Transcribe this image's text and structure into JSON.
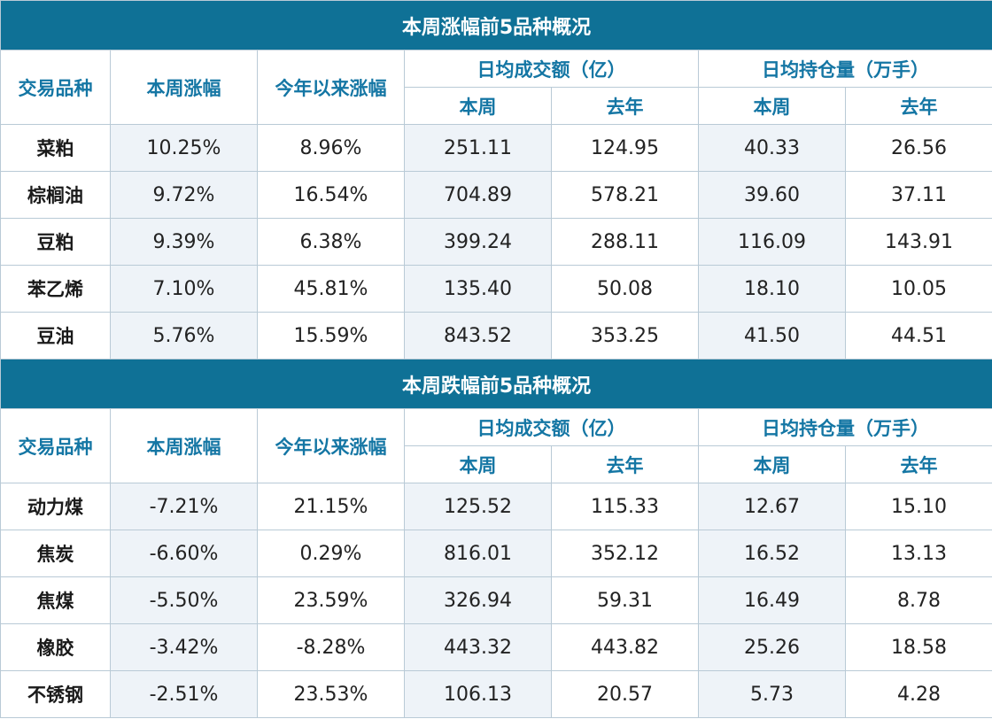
{
  "sections": [
    {
      "title": "本周涨幅前5品种概况",
      "headers": {
        "name": "交易品种",
        "week_change": "本周涨幅",
        "ytd_change": "今年以来涨幅",
        "volume_group": "日均成交额（亿）",
        "oi_group": "日均持仓量（万手）",
        "this_week": "本周",
        "last_year": "去年"
      },
      "rows": [
        {
          "name": "菜粕",
          "week_change": "10.25%",
          "ytd_change": "8.96%",
          "volume_week": "251.11",
          "volume_last_year": "124.95",
          "oi_week": "40.33",
          "oi_last_year": "26.56"
        },
        {
          "name": "棕榈油",
          "week_change": "9.72%",
          "ytd_change": "16.54%",
          "volume_week": "704.89",
          "volume_last_year": "578.21",
          "oi_week": "39.60",
          "oi_last_year": "37.11"
        },
        {
          "name": "豆粕",
          "week_change": "9.39%",
          "ytd_change": "6.38%",
          "volume_week": "399.24",
          "volume_last_year": "288.11",
          "oi_week": "116.09",
          "oi_last_year": "143.91"
        },
        {
          "name": "苯乙烯",
          "week_change": "7.10%",
          "ytd_change": "45.81%",
          "volume_week": "135.40",
          "volume_last_year": "50.08",
          "oi_week": "18.10",
          "oi_last_year": "10.05"
        },
        {
          "name": "豆油",
          "week_change": "5.76%",
          "ytd_change": "15.59%",
          "volume_week": "843.52",
          "volume_last_year": "353.25",
          "oi_week": "41.50",
          "oi_last_year": "44.51"
        }
      ]
    },
    {
      "title": "本周跌幅前5品种概况",
      "headers": {
        "name": "交易品种",
        "week_change": "本周涨幅",
        "ytd_change": "今年以来涨幅",
        "volume_group": "日均成交额（亿）",
        "oi_group": "日均持仓量（万手）",
        "this_week": "本周",
        "last_year": "去年"
      },
      "rows": [
        {
          "name": "动力煤",
          "week_change": "-7.21%",
          "ytd_change": "21.15%",
          "volume_week": "125.52",
          "volume_last_year": "115.33",
          "oi_week": "12.67",
          "oi_last_year": "15.10"
        },
        {
          "name": "焦炭",
          "week_change": "-6.60%",
          "ytd_change": "0.29%",
          "volume_week": "816.01",
          "volume_last_year": "352.12",
          "oi_week": "16.52",
          "oi_last_year": "13.13"
        },
        {
          "name": "焦煤",
          "week_change": "-5.50%",
          "ytd_change": "23.59%",
          "volume_week": "326.94",
          "volume_last_year": "59.31",
          "oi_week": "16.49",
          "oi_last_year": "8.78"
        },
        {
          "name": "橡胶",
          "week_change": "-3.42%",
          "ytd_change": "-8.28%",
          "volume_week": "443.32",
          "volume_last_year": "443.82",
          "oi_week": "25.26",
          "oi_last_year": "18.58"
        },
        {
          "name": "不锈钢",
          "week_change": "-2.51%",
          "ytd_change": "23.53%",
          "volume_week": "106.13",
          "volume_last_year": "20.57",
          "oi_week": "5.73",
          "oi_last_year": "4.28"
        }
      ]
    }
  ]
}
